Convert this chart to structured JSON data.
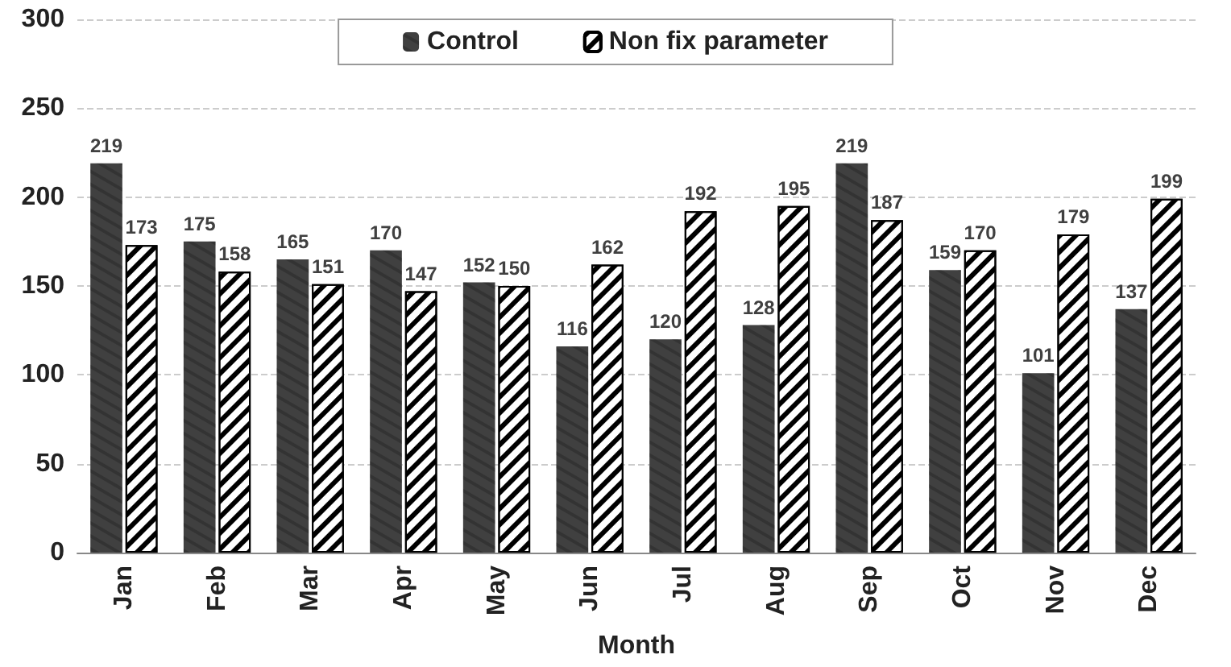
{
  "chart_data": {
    "type": "bar",
    "xlabel": "Month",
    "categories": [
      "Jan",
      "Feb",
      "Mar",
      "Apr",
      "May",
      "Jun",
      "Jul",
      "Aug",
      "Sep",
      "Oct",
      "Nov",
      "Dec"
    ],
    "series": [
      {
        "name": "Control",
        "color": "#404040",
        "values": [
          219,
          175,
          165,
          170,
          152,
          116,
          120,
          128,
          219,
          159,
          101,
          137
        ]
      },
      {
        "name": "Non fix parameter",
        "color": "#000000",
        "values": [
          173,
          158,
          151,
          147,
          150,
          162,
          192,
          195,
          187,
          170,
          179,
          199
        ]
      }
    ],
    "ylim": [
      0,
      300
    ],
    "yticks": [
      0,
      50,
      100,
      150,
      200,
      250,
      300
    ],
    "grid": "y",
    "legend": "top",
    "data_labels": true
  }
}
